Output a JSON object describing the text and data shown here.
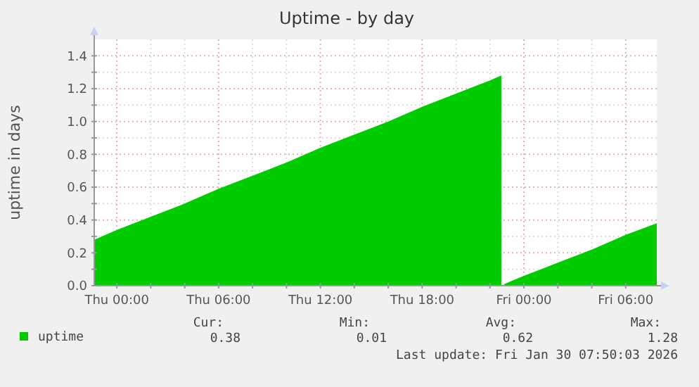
{
  "chart_data": {
    "type": "area",
    "title": "Uptime - by day",
    "ylabel": "uptime in days",
    "x": [
      "2026-01-28T22:40",
      "2026-01-29T00:00",
      "2026-01-29T02:00",
      "2026-01-29T04:00",
      "2026-01-29T06:00",
      "2026-01-29T08:00",
      "2026-01-29T10:00",
      "2026-01-29T12:00",
      "2026-01-29T14:00",
      "2026-01-29T16:00",
      "2026-01-29T18:00",
      "2026-01-29T20:00",
      "2026-01-29T22:00",
      "2026-01-29T22:40",
      "2026-01-29T22:45",
      "2026-01-29T22:50",
      "2026-01-30T00:00",
      "2026-01-30T02:00",
      "2026-01-30T04:00",
      "2026-01-30T06:00",
      "2026-01-30T07:50"
    ],
    "series": [
      {
        "name": "uptime",
        "color": "#00cc00",
        "values": [
          0.28,
          0.34,
          0.42,
          0.5,
          0.59,
          0.67,
          0.75,
          0.84,
          0.92,
          1.0,
          1.09,
          1.17,
          1.25,
          1.28,
          null,
          0.01,
          0.06,
          0.14,
          0.22,
          0.31,
          0.38
        ]
      }
    ],
    "xlim": [
      "2026-01-28T22:40",
      "2026-01-30T07:50"
    ],
    "xticks": [
      {
        "value": "2026-01-29T00:00",
        "label": "Thu 00:00"
      },
      {
        "value": "2026-01-29T02:00",
        "label": null
      },
      {
        "value": "2026-01-29T04:00",
        "label": null
      },
      {
        "value": "2026-01-29T06:00",
        "label": "Thu 06:00"
      },
      {
        "value": "2026-01-29T08:00",
        "label": null
      },
      {
        "value": "2026-01-29T10:00",
        "label": null
      },
      {
        "value": "2026-01-29T12:00",
        "label": "Thu 12:00"
      },
      {
        "value": "2026-01-29T14:00",
        "label": null
      },
      {
        "value": "2026-01-29T16:00",
        "label": null
      },
      {
        "value": "2026-01-29T18:00",
        "label": "Thu 18:00"
      },
      {
        "value": "2026-01-29T20:00",
        "label": null
      },
      {
        "value": "2026-01-29T22:00",
        "label": null
      },
      {
        "value": "2026-01-30T00:00",
        "label": "Fri 00:00"
      },
      {
        "value": "2026-01-30T02:00",
        "label": null
      },
      {
        "value": "2026-01-30T04:00",
        "label": null
      },
      {
        "value": "2026-01-30T06:00",
        "label": "Fri 06:00"
      }
    ],
    "ylim": [
      0,
      1.5
    ],
    "yticks": [
      {
        "value": 0,
        "label": "0.0"
      },
      {
        "value": 0.1,
        "label": null
      },
      {
        "value": 0.2,
        "label": "0.2"
      },
      {
        "value": 0.3,
        "label": null
      },
      0.4,
      {
        "value": 0.5,
        "label": null
      },
      0.6,
      {
        "value": 0.7,
        "label": null
      },
      0.8,
      {
        "value": 0.9,
        "label": null
      },
      {
        "value": 1.0,
        "label": "1.0"
      },
      {
        "value": 1.1,
        "label": null
      },
      1.2,
      {
        "value": 1.3,
        "label": null
      },
      1.4
    ],
    "grid": true,
    "legend": "bottom",
    "annotations": [
      "Cur:",
      "Min:",
      "Avg:",
      "Max:",
      "0.38",
      "0.01",
      "0.62",
      "1.28",
      "Last update: Fri Jan 30 07:50:03 2026"
    ]
  }
}
